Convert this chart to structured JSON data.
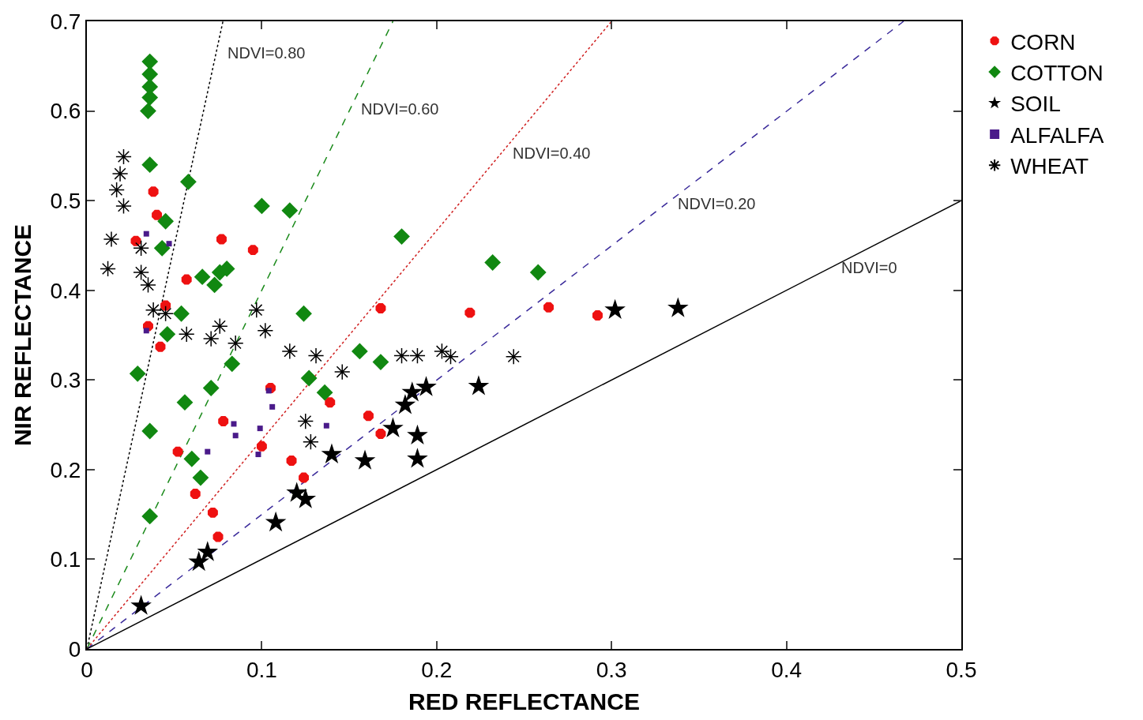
{
  "chart_data": {
    "type": "scatter",
    "xlabel": "RED REFLECTANCE",
    "ylabel": "NIR REFLECTANCE",
    "xlim": [
      0,
      0.5
    ],
    "ylim": [
      0,
      0.7
    ],
    "xticks": [
      0,
      0.1,
      0.2,
      0.3,
      0.4,
      0.5
    ],
    "yticks": [
      0,
      0.1,
      0.2,
      0.3,
      0.4,
      0.5,
      0.6,
      0.7
    ],
    "legend": "right",
    "series": [
      {
        "type": "line",
        "name": "NDVI=0.80",
        "color": "#000000",
        "line_style": "dotted",
        "marker": "none",
        "x": [
          0,
          0.0778
        ],
        "values": [
          0,
          0.7
        ]
      },
      {
        "type": "line",
        "name": "NDVI=0.60",
        "color": "#1a8a1a",
        "line_style": "dashed",
        "marker": "none",
        "x": [
          0,
          0.175
        ],
        "values": [
          0,
          0.7
        ]
      },
      {
        "type": "line",
        "name": "NDVI=0.40",
        "color": "#d02020",
        "line_style": "dotted",
        "marker": "none",
        "x": [
          0,
          0.3
        ],
        "values": [
          0,
          0.7
        ]
      },
      {
        "type": "line",
        "name": "NDVI=0.20",
        "color": "#3a2a9a",
        "line_style": "dashed",
        "marker": "none",
        "x": [
          0,
          0.467
        ],
        "values": [
          0,
          0.7
        ]
      },
      {
        "type": "line",
        "name": "NDVI=0",
        "color": "#000000",
        "line_style": "solid",
        "marker": "none",
        "x": [
          0,
          0.5
        ],
        "values": [
          0,
          0.5
        ]
      },
      {
        "name": "CORN",
        "color": "#ee1111",
        "marker": "circle",
        "x": [
          0.028,
          0.038,
          0.04,
          0.077,
          0.095,
          0.057,
          0.045,
          0.035,
          0.042,
          0.168,
          0.219,
          0.264,
          0.292,
          0.105,
          0.139,
          0.161,
          0.168,
          0.078,
          0.1,
          0.117,
          0.124,
          0.052,
          0.062,
          0.072,
          0.075
        ],
        "values": [
          0.455,
          0.51,
          0.484,
          0.457,
          0.445,
          0.412,
          0.383,
          0.36,
          0.337,
          0.38,
          0.375,
          0.381,
          0.372,
          0.291,
          0.275,
          0.26,
          0.24,
          0.254,
          0.226,
          0.21,
          0.191,
          0.22,
          0.173,
          0.152,
          0.125
        ]
      },
      {
        "name": "COTTON",
        "color": "#118811",
        "marker": "diamond",
        "x": [
          0.036,
          0.036,
          0.036,
          0.036,
          0.035,
          0.036,
          0.058,
          0.1,
          0.116,
          0.18,
          0.232,
          0.258,
          0.045,
          0.043,
          0.066,
          0.076,
          0.08,
          0.073,
          0.054,
          0.046,
          0.124,
          0.083,
          0.127,
          0.136,
          0.156,
          0.168,
          0.029,
          0.056,
          0.071,
          0.036,
          0.06,
          0.065,
          0.036
        ],
        "values": [
          0.655,
          0.641,
          0.627,
          0.615,
          0.6,
          0.54,
          0.521,
          0.494,
          0.489,
          0.46,
          0.431,
          0.42,
          0.477,
          0.447,
          0.415,
          0.42,
          0.424,
          0.406,
          0.374,
          0.351,
          0.374,
          0.318,
          0.302,
          0.286,
          0.332,
          0.32,
          0.307,
          0.275,
          0.291,
          0.243,
          0.212,
          0.191,
          0.148
        ]
      },
      {
        "name": "SOIL",
        "color": "#000000",
        "marker": "star",
        "x": [
          0.031,
          0.064,
          0.069,
          0.108,
          0.12,
          0.125,
          0.14,
          0.159,
          0.189,
          0.189,
          0.175,
          0.182,
          0.186,
          0.194,
          0.224,
          0.302,
          0.338
        ],
        "values": [
          0.048,
          0.097,
          0.108,
          0.141,
          0.174,
          0.167,
          0.217,
          0.21,
          0.212,
          0.238,
          0.246,
          0.272,
          0.286,
          0.292,
          0.293,
          0.378,
          0.38
        ]
      },
      {
        "name": "ALFALFA",
        "color": "#4a1a8a",
        "marker": "square",
        "x": [
          0.034,
          0.047,
          0.034,
          0.104,
          0.106,
          0.099,
          0.084,
          0.085,
          0.069,
          0.098,
          0.137
        ],
        "values": [
          0.463,
          0.452,
          0.355,
          0.288,
          0.27,
          0.246,
          0.251,
          0.238,
          0.22,
          0.217,
          0.249
        ]
      },
      {
        "name": "WHEAT",
        "color": "#000000",
        "marker": "cross",
        "x": [
          0.021,
          0.019,
          0.017,
          0.021,
          0.014,
          0.012,
          0.031,
          0.031,
          0.035,
          0.038,
          0.045,
          0.057,
          0.071,
          0.076,
          0.085,
          0.097,
          0.102,
          0.116,
          0.131,
          0.146,
          0.18,
          0.189,
          0.203,
          0.208,
          0.244,
          0.125,
          0.128
        ],
        "values": [
          0.549,
          0.53,
          0.512,
          0.494,
          0.457,
          0.424,
          0.447,
          0.42,
          0.406,
          0.378,
          0.374,
          0.351,
          0.346,
          0.36,
          0.341,
          0.378,
          0.355,
          0.332,
          0.327,
          0.309,
          0.327,
          0.327,
          0.332,
          0.326,
          0.326,
          0.254,
          0.231
        ]
      }
    ]
  }
}
